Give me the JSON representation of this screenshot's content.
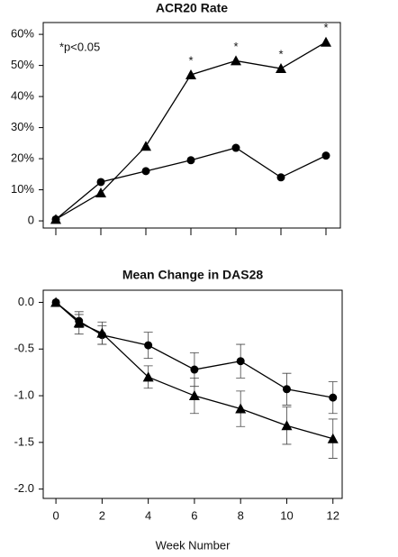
{
  "chart_data": [
    {
      "type": "line",
      "title": "ACR20 Rate",
      "annotation": "*p<0.05",
      "categories": [
        null,
        null,
        null,
        null,
        null,
        null,
        null
      ],
      "ylim": [
        -2.3,
        63.8
      ],
      "yticks": [
        0,
        {
          "value": 10,
          "label": "10%"
        },
        {
          "value": 20,
          "label": "20%"
        },
        {
          "value": 30,
          "label": "30%"
        },
        {
          "value": 40,
          "label": "40%"
        },
        {
          "value": 50,
          "label": "50%"
        },
        {
          "value": 60,
          "label": "60%"
        }
      ],
      "series": [
        {
          "marker": "triangle",
          "color": "#000000",
          "values": [
            0.5,
            9,
            24,
            47,
            51.5,
            49,
            57.5
          ],
          "significance": [
            null,
            null,
            null,
            "*",
            "*",
            "*",
            "*"
          ]
        },
        {
          "marker": "circle",
          "color": "#000000",
          "values": [
            0.5,
            12.5,
            16,
            19.5,
            23.5,
            14,
            21
          ]
        }
      ]
    },
    {
      "type": "errorline",
      "title": "Mean Change in DAS28",
      "x_label": "Week Number",
      "x": [
        0,
        1,
        2,
        4,
        6,
        8,
        10,
        12
      ],
      "xlim": [
        -0.55,
        12.4
      ],
      "xticks": [
        0,
        2,
        4,
        6,
        8,
        10,
        12
      ],
      "ylim": [
        -2.1,
        0.13
      ],
      "yticks": [
        {
          "value": 0,
          "label": "0.0"
        },
        {
          "value": -0.5,
          "label": "-0.5"
        },
        {
          "value": -1,
          "label": "-1.0"
        },
        {
          "value": -1.5,
          "label": "-1.5"
        },
        {
          "value": -2,
          "label": "-2.0"
        }
      ],
      "series": [
        {
          "marker": "circle",
          "color": "#000000",
          "values": [
            0,
            -0.2,
            -0.35,
            -0.46,
            -0.72,
            -0.63,
            -0.93,
            -1.02
          ],
          "errors": [
            0,
            0.07,
            0.1,
            0.14,
            0.18,
            0.18,
            0.17,
            0.17
          ]
        },
        {
          "marker": "triangle",
          "color": "#000000",
          "values": [
            0,
            -0.22,
            -0.33,
            -0.8,
            -1.0,
            -1.14,
            -1.32,
            -1.46
          ],
          "errors": [
            0,
            0.12,
            0.12,
            0.12,
            0.19,
            0.19,
            0.2,
            0.21
          ]
        }
      ]
    }
  ]
}
